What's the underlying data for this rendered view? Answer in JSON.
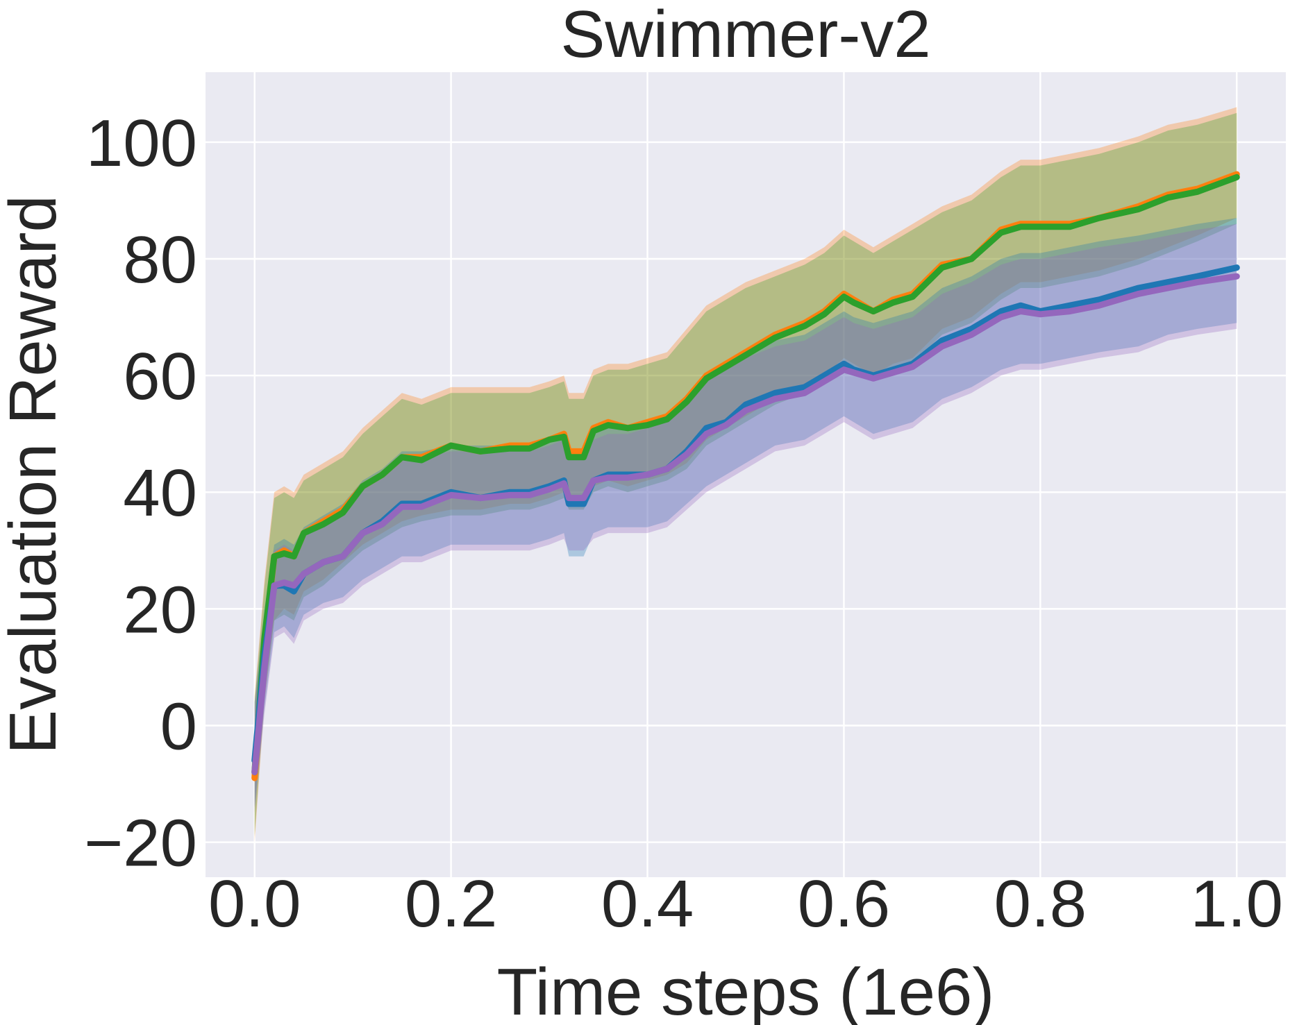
{
  "chart_data": {
    "type": "line",
    "title": "Swimmer-v2",
    "xlabel": "Time steps (1e6)",
    "ylabel": "Evaluation Reward",
    "xlim": [
      -0.05,
      1.05
    ],
    "ylim": [
      -26,
      112
    ],
    "xticks": [
      0.0,
      0.2,
      0.4,
      0.6,
      0.8,
      1.0
    ],
    "xtick_labels": [
      "0.0",
      "0.2",
      "0.4",
      "0.6",
      "0.8",
      "1.0"
    ],
    "yticks": [
      -20,
      0,
      20,
      40,
      60,
      80,
      100
    ],
    "ytick_labels": [
      "−20",
      "0",
      "20",
      "40",
      "60",
      "80",
      "100"
    ],
    "grid": true,
    "background": "#eaeaf2",
    "x": [
      0.0,
      0.01,
      0.02,
      0.03,
      0.04,
      0.05,
      0.07,
      0.09,
      0.11,
      0.13,
      0.15,
      0.17,
      0.2,
      0.23,
      0.26,
      0.28,
      0.3,
      0.315,
      0.32,
      0.335,
      0.345,
      0.36,
      0.38,
      0.4,
      0.42,
      0.44,
      0.46,
      0.48,
      0.5,
      0.53,
      0.56,
      0.58,
      0.6,
      0.61,
      0.63,
      0.65,
      0.67,
      0.7,
      0.73,
      0.76,
      0.78,
      0.8,
      0.83,
      0.86,
      0.9,
      0.93,
      0.96,
      1.0
    ],
    "series": [
      {
        "color": "#ff7f0e",
        "values": [
          -9,
          14,
          29,
          30,
          29,
          33,
          35,
          37,
          41,
          43,
          46,
          46,
          48,
          47,
          48,
          48,
          49,
          50,
          47,
          47,
          51,
          52,
          51,
          52,
          53,
          56,
          60,
          62,
          64,
          67,
          69,
          71,
          74,
          73,
          71,
          73,
          74,
          79,
          80,
          85,
          86,
          86,
          86,
          87,
          89,
          91,
          92,
          94.5
        ],
        "upper": [
          5,
          25,
          40,
          41,
          40,
          43,
          45,
          47,
          51,
          54,
          57,
          56,
          58,
          58,
          58,
          58,
          59,
          60,
          57,
          57,
          61,
          62,
          62,
          63,
          64,
          68,
          72,
          74,
          76,
          78,
          80,
          82,
          85,
          84,
          82,
          84,
          86,
          89,
          91,
          95,
          97,
          97,
          98,
          99,
          101,
          103,
          104,
          106
        ],
        "lower": [
          -20,
          4,
          18,
          20,
          19,
          23,
          25,
          28,
          31,
          33,
          35,
          36,
          37,
          37,
          38,
          38,
          39,
          40,
          38,
          38,
          41,
          42,
          41,
          42,
          43,
          45,
          49,
          51,
          53,
          56,
          58,
          60,
          63,
          62,
          60,
          62,
          63,
          68,
          70,
          74,
          76,
          76,
          77,
          78,
          80,
          82,
          84,
          87
        ]
      },
      {
        "color": "#2ca02c",
        "values": [
          -8,
          15,
          29,
          29.5,
          29,
          33,
          34.5,
          36.5,
          41,
          43,
          46,
          45.5,
          48,
          47,
          47.5,
          47.5,
          49,
          49.5,
          46,
          46,
          50.5,
          51.5,
          51,
          51.5,
          52.5,
          55.5,
          59.5,
          61.5,
          63.5,
          66.5,
          68.5,
          70.5,
          73.5,
          72.5,
          71,
          72.5,
          73.5,
          78.5,
          80,
          84.5,
          85.5,
          85.5,
          85.5,
          87,
          88.5,
          90.5,
          91.5,
          94
        ],
        "upper": [
          4,
          24,
          39,
          40,
          39,
          42,
          44,
          46,
          50,
          53,
          56,
          55,
          57,
          57,
          57,
          57,
          58,
          59,
          56,
          56,
          60,
          61,
          61,
          62,
          63,
          67,
          71,
          73,
          75,
          77,
          79,
          81,
          84,
          83,
          81,
          83,
          85,
          88,
          90,
          94,
          96,
          96,
          97,
          98,
          100,
          102,
          103,
          105
        ],
        "lower": [
          -19,
          5,
          18,
          19,
          18,
          22,
          24,
          27,
          30,
          32,
          34,
          35,
          36,
          36,
          37,
          37,
          38,
          39,
          37,
          37,
          40,
          41,
          40,
          41,
          42,
          44,
          48,
          50,
          52,
          55,
          57,
          59,
          62,
          61,
          59,
          61,
          62,
          67,
          69,
          73,
          75,
          75,
          76,
          77,
          79,
          81,
          83,
          86
        ]
      },
      {
        "color": "#1f77b4",
        "values": [
          -6,
          12,
          24,
          24,
          23,
          26,
          28,
          29,
          33,
          35,
          38,
          38,
          40,
          39,
          40,
          40,
          41,
          42,
          38,
          38,
          42,
          43,
          43,
          43,
          44,
          47,
          51,
          52,
          55,
          57,
          58,
          60,
          62,
          61,
          60,
          61,
          62,
          66,
          68,
          71,
          72,
          71,
          72,
          73,
          75,
          76,
          77,
          78.5
        ],
        "upper": [
          4,
          20,
          31,
          32,
          31,
          34,
          36,
          38,
          42,
          44,
          47,
          47,
          48,
          48,
          48,
          48,
          49,
          50,
          47,
          47,
          50,
          51,
          51,
          52,
          53,
          56,
          60,
          62,
          64,
          66,
          67,
          69,
          71,
          70,
          69,
          70,
          71,
          75,
          77,
          80,
          81,
          81,
          82,
          83,
          84,
          85,
          86,
          87
        ],
        "lower": [
          -14,
          3,
          16,
          17,
          15,
          19,
          21,
          22,
          25,
          27,
          29,
          29,
          31,
          31,
          31,
          31,
          32,
          33,
          29,
          29,
          33,
          34,
          34,
          34,
          35,
          38,
          41,
          43,
          45,
          48,
          49,
          51,
          53,
          52,
          50,
          51,
          52,
          56,
          58,
          61,
          62,
          62,
          63,
          64,
          65,
          67,
          68,
          69
        ]
      },
      {
        "color": "#9467bd",
        "values": [
          -8,
          10,
          24,
          24.5,
          24,
          26,
          28,
          29,
          33,
          34.5,
          37.5,
          37.5,
          39.5,
          39,
          39.5,
          39.5,
          40.5,
          41.5,
          39,
          39,
          42,
          42.5,
          42.5,
          43,
          44,
          46.5,
          50,
          51.5,
          54,
          56,
          57,
          59,
          61,
          60.5,
          59.5,
          60.5,
          61.5,
          65,
          67,
          70,
          71,
          70.5,
          71,
          72,
          74,
          75,
          76,
          77
        ],
        "upper": [
          3,
          19,
          30,
          31,
          30,
          33,
          35,
          37,
          41,
          43,
          46,
          46,
          47,
          47,
          47,
          47,
          48,
          49,
          46,
          46,
          49,
          50,
          50,
          51,
          52,
          55,
          59,
          61,
          63,
          65,
          66,
          68,
          70,
          69,
          68,
          69,
          70,
          74,
          76,
          79,
          80,
          80,
          81,
          82,
          83,
          84,
          85,
          86
        ],
        "lower": [
          -15,
          2,
          15,
          16,
          14,
          18,
          20,
          21,
          24,
          26,
          28,
          28,
          30,
          30,
          30,
          30,
          31,
          32,
          30,
          30,
          32,
          33,
          33,
          33,
          34,
          37,
          40,
          42,
          44,
          47,
          48,
          50,
          52,
          51,
          49,
          50,
          51,
          55,
          57,
          60,
          61,
          61,
          62,
          63,
          64,
          66,
          67,
          68
        ]
      }
    ]
  }
}
